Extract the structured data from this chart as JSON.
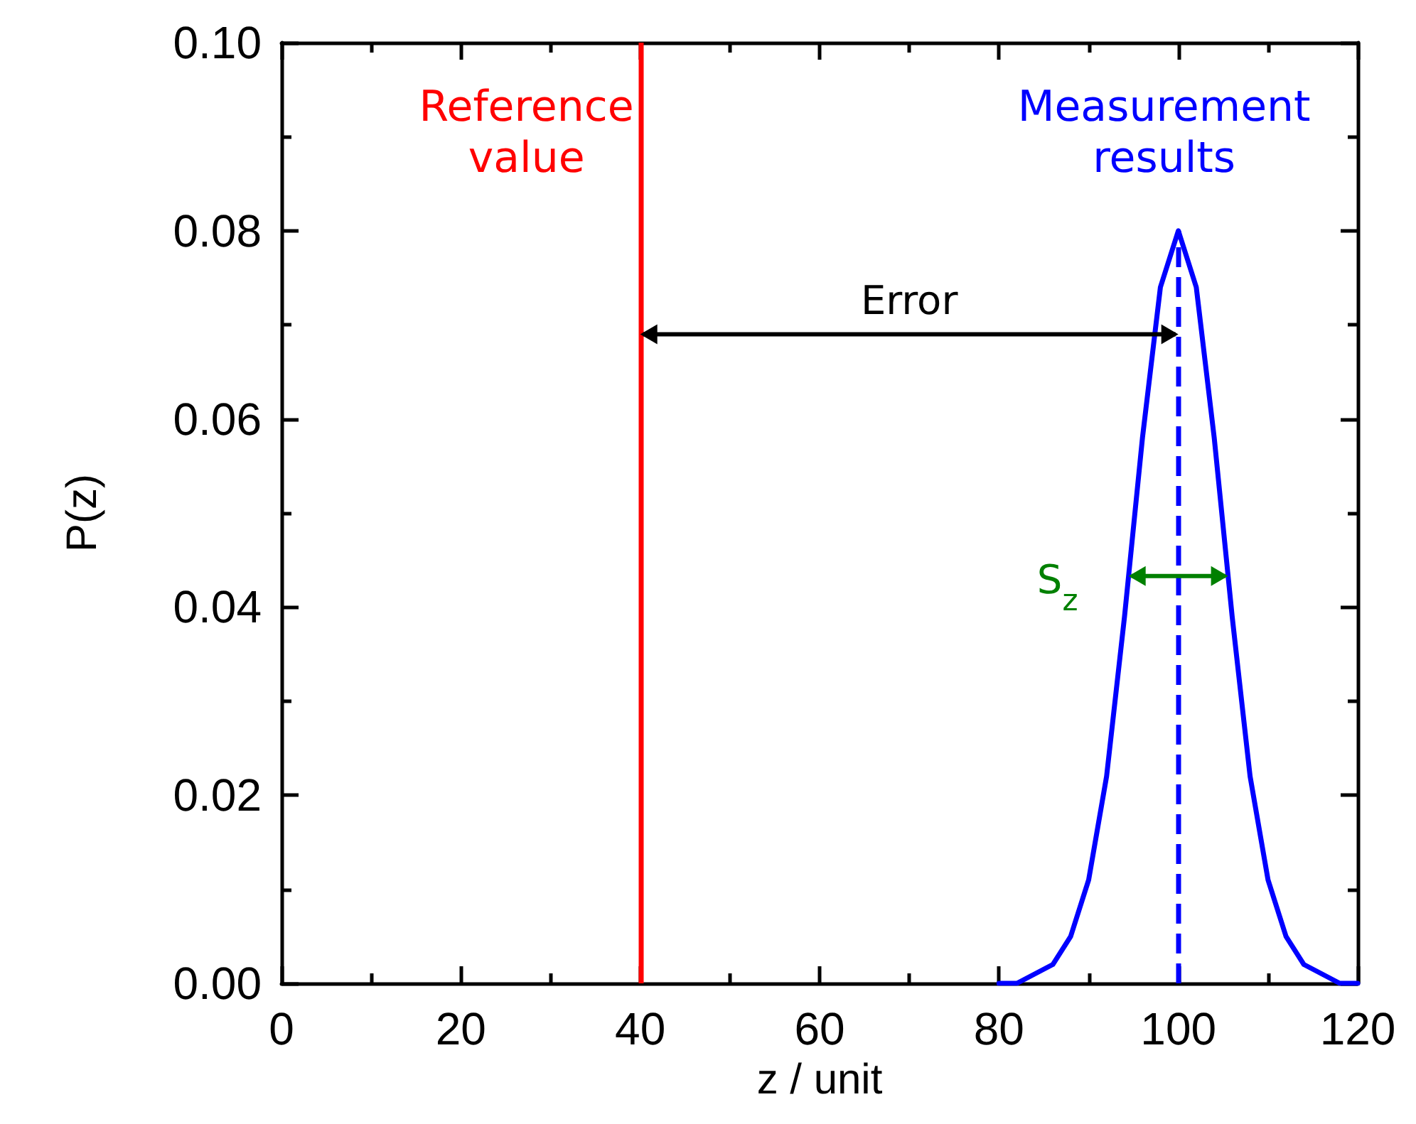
{
  "chart_data": {
    "type": "line",
    "xlabel": "z / unit",
    "ylabel": "P(z)",
    "series": [
      {
        "name": "Measurement results",
        "color": "#0000ff",
        "x": [
          80,
          82,
          84,
          86,
          88,
          90,
          92,
          94,
          96,
          98,
          100,
          102,
          104,
          106,
          108,
          110,
          112,
          114,
          116,
          118,
          120
        ],
        "values": [
          0.0,
          0.0,
          0.001,
          0.002,
          0.005,
          0.011,
          0.022,
          0.039,
          0.058,
          0.074,
          0.08,
          0.074,
          0.058,
          0.039,
          0.022,
          0.011,
          0.005,
          0.002,
          0.001,
          0.0,
          0.0
        ]
      }
    ],
    "xlim": [
      0,
      120
    ],
    "xticks": [
      0,
      20,
      40,
      60,
      80,
      100,
      120
    ],
    "ylim": [
      0,
      0.1
    ],
    "yticks": [
      {
        "value": 0,
        "label": "0.00"
      },
      {
        "value": 0.02,
        "label": "0.02"
      },
      {
        "value": 0.04,
        "label": "0.04"
      },
      {
        "value": 0.06,
        "label": "0.06"
      },
      {
        "value": 0.08,
        "label": "0.08"
      },
      {
        "value": 0.1,
        "label": "0.10"
      }
    ],
    "ref_lines": [
      {
        "axis": "x",
        "value": 40,
        "label": "Reference value",
        "color": "#ff0000",
        "line_style": "solid"
      },
      {
        "axis": "x",
        "value": 100,
        "label": null,
        "color": "#0000ff",
        "line_style": "dashed"
      }
    ],
    "annotations": [
      "Error",
      {
        "text": "S$_{z}$",
        "x": 100,
        "y": 0.0433
      }
    ],
    "marker": "none",
    "line_style": "solid",
    "grid": false,
    "legend": false
  }
}
